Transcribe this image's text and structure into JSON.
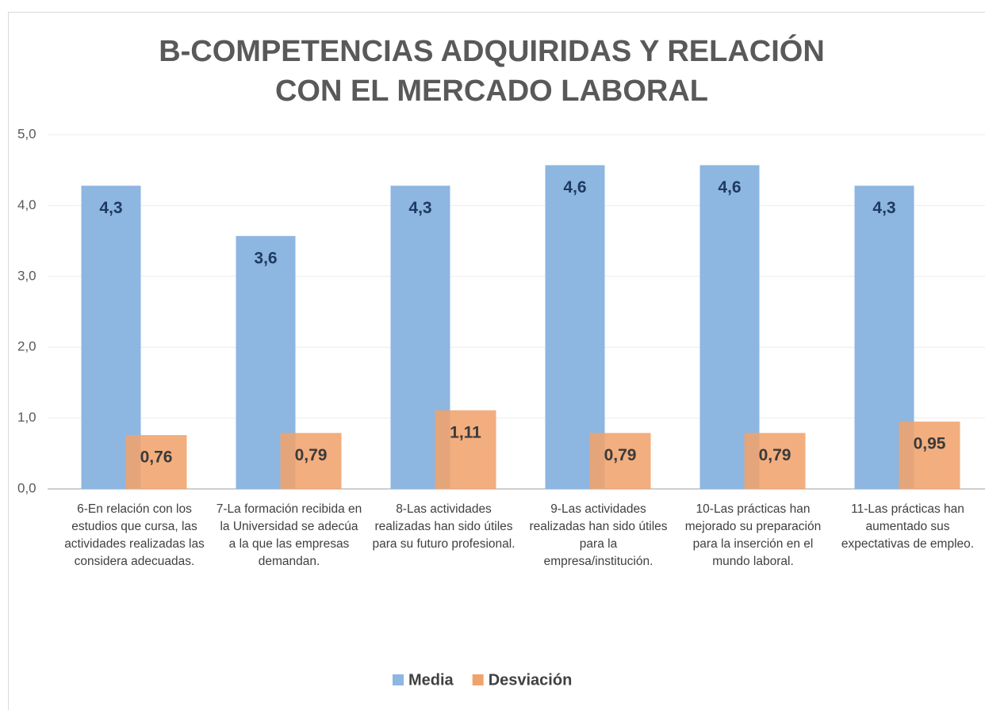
{
  "chart_data": {
    "type": "bar",
    "title": "B-COMPETENCIAS ADQUIRIDAS Y RELACIÓN CON EL MERCADO LABORAL",
    "categories": [
      "6-En relación con los estudios que cursa, las actividades realizadas las considera adecuadas.",
      "7-La formación recibida en la Universidad se adecúa a la que las empresas demandan.",
      "8-Las actividades realizadas han sido útiles para su futuro profesional.",
      "9-Las actividades realizadas han sido útiles para la empresa/institución.",
      "10-Las prácticas han mejorado su preparación para la inserción en el mundo laboral.",
      "11-Las prácticas han aumentado sus expectativas de empleo."
    ],
    "series": [
      {
        "name": "Media",
        "color": "#8db6e1",
        "values": [
          4.28,
          3.57,
          4.28,
          4.57,
          4.57,
          4.28
        ],
        "value_labels": [
          "4,3",
          "3,6",
          "4,3",
          "4,6",
          "4,6",
          "4,3"
        ]
      },
      {
        "name": "Desviación",
        "color": "#f0a36c",
        "values": [
          0.76,
          0.79,
          1.11,
          0.79,
          0.79,
          0.95
        ],
        "value_labels": [
          "0,76",
          "0,79",
          "1,11",
          "0,79",
          "0,79",
          "0,95"
        ]
      }
    ],
    "ylim": [
      0,
      5
    ],
    "yticks": [
      {
        "value": 0,
        "label": "0,0"
      },
      {
        "value": 1,
        "label": "1,0"
      },
      {
        "value": 2,
        "label": "2,0"
      },
      {
        "value": 3,
        "label": "3,0"
      },
      {
        "value": 4,
        "label": "4,0"
      },
      {
        "value": 5,
        "label": "5,0"
      }
    ],
    "grid": true,
    "legend": "bottom"
  }
}
